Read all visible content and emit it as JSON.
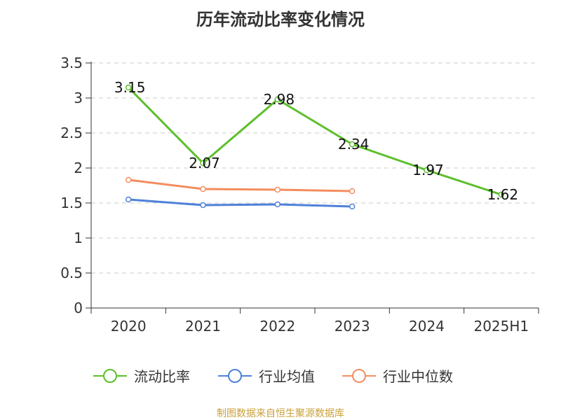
{
  "chart_data": {
    "type": "line",
    "title": "历年流动比率变化情况",
    "categories": [
      "2020",
      "2021",
      "2022",
      "2023",
      "2024",
      "2025H1"
    ],
    "ylim": [
      0,
      3.5
    ],
    "yticks": [
      "0",
      "0.5",
      "1",
      "1.5",
      "2",
      "2.5",
      "3",
      "3.5"
    ],
    "grid": true,
    "legend_position": "bottom",
    "series": [
      {
        "name": "流动比率",
        "color": "#5cbf2a",
        "values": [
          3.15,
          2.07,
          2.98,
          2.34,
          1.97,
          1.62
        ],
        "labels": [
          "3.15",
          "2.07",
          "2.98",
          "2.34",
          "1.97",
          "1.62"
        ]
      },
      {
        "name": "行业均值",
        "color": "#4f80d9",
        "values": [
          1.55,
          1.47,
          1.48,
          1.45,
          null,
          null
        ]
      },
      {
        "name": "行业中位数",
        "color": "#f48d5e",
        "values": [
          1.83,
          1.7,
          1.69,
          1.67,
          null,
          null
        ]
      }
    ]
  },
  "footer": "制图数据来自恒生聚源数据库"
}
